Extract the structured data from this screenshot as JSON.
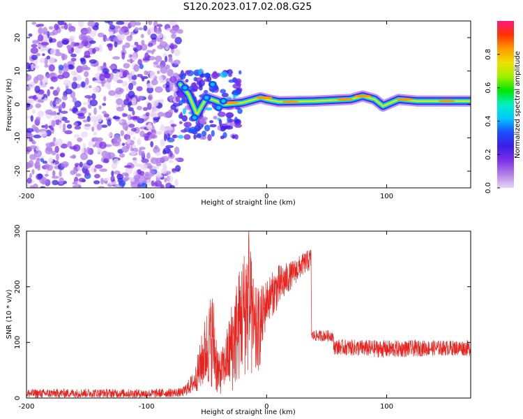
{
  "title": "S120.2023.017.02.08.G25",
  "colorbar": {
    "label": "Normalized spectral amplitude",
    "ticks": [
      0.0,
      0.2,
      0.4,
      0.6,
      0.8
    ],
    "tick_labels": [
      "0.0",
      "0.2",
      "0.4",
      "0.6",
      "0.8"
    ],
    "stops": [
      "#e8d6f7",
      "#b07ee8",
      "#7a2ee8",
      "#3b1ee8",
      "#1d4dff",
      "#00c8ff",
      "#00f0c0",
      "#00e600",
      "#a0f000",
      "#f0e000",
      "#ff9900",
      "#ff3300",
      "#ff1a80"
    ]
  },
  "chart_data": [
    {
      "type": "heatmap",
      "title": "S120.2023.017.02.08.G25",
      "xlabel": "Height of straight line (km)",
      "ylabel": "Frequency (Hz)",
      "xlim": [
        -200,
        170
      ],
      "ylim": [
        -25,
        25
      ],
      "x_ticks": [
        -200,
        -100,
        0,
        100
      ],
      "y_ticks": [
        -20,
        -10,
        0,
        10,
        20
      ],
      "colorscale_range": [
        0,
        1
      ],
      "noise_region_x": [
        -200,
        -72
      ],
      "ridge": [
        {
          "x": -72,
          "y": 6
        },
        {
          "x": -65,
          "y": 3
        },
        {
          "x": -58,
          "y": -3
        },
        {
          "x": -50,
          "y": 2
        },
        {
          "x": -42,
          "y": 1
        },
        {
          "x": -35,
          "y": 0
        },
        {
          "x": -20,
          "y": 0.5
        },
        {
          "x": -5,
          "y": 2
        },
        {
          "x": 0,
          "y": 1.5
        },
        {
          "x": 10,
          "y": 0.8
        },
        {
          "x": 40,
          "y": 1
        },
        {
          "x": 70,
          "y": 1.5
        },
        {
          "x": 80,
          "y": 2.5
        },
        {
          "x": 90,
          "y": 1.5
        },
        {
          "x": 97,
          "y": -0.5
        },
        {
          "x": 110,
          "y": 1.5
        },
        {
          "x": 125,
          "y": 1
        },
        {
          "x": 170,
          "y": 1
        }
      ]
    },
    {
      "type": "line",
      "xlabel": "Height of straight line (km)",
      "ylabel": "SNR (10 * v/v)",
      "xlim": [
        -200,
        170
      ],
      "ylim": [
        0,
        300
      ],
      "x_ticks": [
        -200,
        -100,
        0,
        100
      ],
      "y_ticks": [
        0,
        100,
        200,
        300
      ],
      "series": [
        {
          "color": "#e8231e",
          "envelope": [
            {
              "x": -200,
              "y": 8,
              "spread": 8
            },
            {
              "x": -150,
              "y": 9,
              "spread": 8
            },
            {
              "x": -100,
              "y": 8,
              "spread": 8
            },
            {
              "x": -70,
              "y": 10,
              "spread": 8
            },
            {
              "x": -60,
              "y": 30,
              "spread": 20
            },
            {
              "x": -50,
              "y": 90,
              "spread": 70
            },
            {
              "x": -45,
              "y": 110,
              "spread": 90
            },
            {
              "x": -40,
              "y": 40,
              "spread": 40
            },
            {
              "x": -35,
              "y": 60,
              "spread": 40
            },
            {
              "x": -28,
              "y": 100,
              "spread": 90
            },
            {
              "x": -20,
              "y": 150,
              "spread": 110
            },
            {
              "x": -15,
              "y": 170,
              "spread": 130
            },
            {
              "x": -10,
              "y": 110,
              "spread": 90
            },
            {
              "x": -5,
              "y": 130,
              "spread": 70
            },
            {
              "x": 0,
              "y": 175,
              "spread": 40
            },
            {
              "x": 10,
              "y": 200,
              "spread": 40
            },
            {
              "x": 20,
              "y": 220,
              "spread": 25
            },
            {
              "x": 30,
              "y": 240,
              "spread": 20
            },
            {
              "x": 37,
              "y": 250,
              "spread": 20
            },
            {
              "x": 37.5,
              "y": 112,
              "spread": 10
            },
            {
              "x": 55,
              "y": 112,
              "spread": 10
            },
            {
              "x": 56,
              "y": 92,
              "spread": 14
            },
            {
              "x": 100,
              "y": 88,
              "spread": 16
            },
            {
              "x": 140,
              "y": 90,
              "spread": 14
            },
            {
              "x": 170,
              "y": 90,
              "spread": 14
            }
          ]
        }
      ]
    }
  ]
}
